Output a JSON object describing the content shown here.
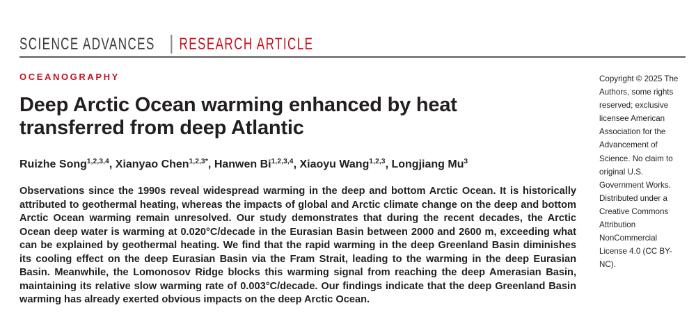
{
  "masthead": {
    "journal": "SCIENCE ADVANCES",
    "article_type": "RESEARCH ARTICLE"
  },
  "article": {
    "section": "OCEANOGRAPHY",
    "title_lines": [
      "Deep Arctic Ocean warming enhanced by heat",
      "transferred from deep Atlantic"
    ],
    "authors": [
      {
        "sep": "",
        "name": "Ruizhe Song",
        "affil": "1,2,3,4"
      },
      {
        "sep": ", ",
        "name": "Xianyao Chen",
        "affil": "1,2,3*"
      },
      {
        "sep": ", ",
        "name": "Hanwen Bi",
        "affil": "1,2,3,4"
      },
      {
        "sep": ", ",
        "name": "Xiaoyu Wang",
        "affil": "1,2,3"
      },
      {
        "sep": ", ",
        "name": "Longjiang Mu",
        "affil": "3"
      }
    ],
    "abstract": "Observations since the 1990s reveal widespread warming in the deep and bottom Arctic Ocean. It is historically attributed to geothermal heating, whereas the impacts of global and Arctic climate change on the deep and bottom Arctic Ocean warming remain unresolved. Our study demonstrates that during the recent decades, the Arctic Ocean deep water is warming at 0.020°C/decade in the Eurasian Basin between 2000 and 2600 m, exceeding what can be explained by geothermal heating. We find that the rapid warming in the deep Greenland Basin diminishes its cooling effect on the deep Eurasian Basin via the Fram Strait, leading to the warming in the deep Eurasian Basin. Meanwhile, the Lomonosov Ridge blocks this warming signal from reaching the deep Amerasian Basin, maintaining its relative slow warming rate of 0.003°C/decade. Our findings indicate that the deep Greenland Basin warming has already exerted obvious impacts on the deep Arctic Ocean."
  },
  "copyright_notice": "Copyright © 2025 The Authors, some rights reserved; exclusive licensee American Association for the Advancement of Science. No claim to original U.S. Government Works. Distributed under a Creative Commons Attribution NonCommercial License 4.0 (CC BY-NC).",
  "colors": {
    "accent_red": "#c3121f",
    "text_ink": "#231f20",
    "masthead_ink": "#3b3837",
    "rule_gray": "#5d5a58",
    "divider_gray": "#8e8a88"
  }
}
